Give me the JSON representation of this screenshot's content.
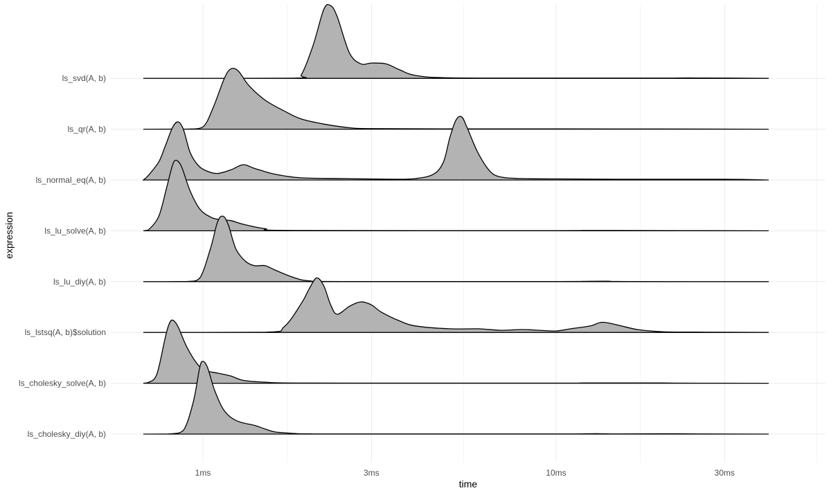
{
  "chart_data": {
    "type": "ridgeline",
    "xlabel": "time",
    "ylabel": "expression",
    "x_scale": "log",
    "x_ticks": [
      {
        "value": 0.001,
        "label": "1ms"
      },
      {
        "value": 0.003,
        "label": "3ms"
      },
      {
        "value": 0.01,
        "label": "10ms"
      },
      {
        "value": 0.03,
        "label": "30ms"
      }
    ],
    "x_range": [
      0.00073,
      0.046
    ],
    "grid": true,
    "fill_color": "#b3b3b3",
    "line_color": "#000000",
    "series": [
      {
        "name": "ls_cholesky_diy(A, b)",
        "baseline": 0,
        "points": [
          [
            0.00065,
            0
          ],
          [
            0.0008,
            0.002
          ],
          [
            0.00088,
            0.05
          ],
          [
            0.00094,
            0.45
          ],
          [
            0.00098,
            0.92
          ],
          [
            0.001,
            1.0
          ],
          [
            0.00103,
            0.92
          ],
          [
            0.00108,
            0.6
          ],
          [
            0.00115,
            0.32
          ],
          [
            0.00125,
            0.18
          ],
          [
            0.0014,
            0.12
          ],
          [
            0.0015,
            0.07
          ],
          [
            0.0016,
            0.03
          ],
          [
            0.0018,
            0.01
          ],
          [
            0.002,
            0.003
          ],
          [
            0.003,
            0.002
          ],
          [
            0.01,
            0.002
          ],
          [
            0.013,
            0.006
          ],
          [
            0.015,
            0.002
          ],
          [
            0.02,
            0.005
          ],
          [
            0.025,
            0.002
          ],
          [
            0.04,
            0
          ]
        ]
      },
      {
        "name": "ls_cholesky_solve(A, b)",
        "baseline": 1,
        "points": [
          [
            0.00065,
            0
          ],
          [
            0.0007,
            0.01
          ],
          [
            0.00074,
            0.12
          ],
          [
            0.00078,
            0.6
          ],
          [
            0.0008,
            0.8
          ],
          [
            0.00082,
            0.87
          ],
          [
            0.00085,
            0.78
          ],
          [
            0.0009,
            0.5
          ],
          [
            0.00097,
            0.25
          ],
          [
            0.00103,
            0.17
          ],
          [
            0.0011,
            0.14
          ],
          [
            0.0012,
            0.1
          ],
          [
            0.0013,
            0.04
          ],
          [
            0.0015,
            0.015
          ],
          [
            0.002,
            0.003
          ],
          [
            0.01,
            0.002
          ],
          [
            0.012,
            0.004
          ],
          [
            0.02,
            0.004
          ],
          [
            0.022,
            0.002
          ],
          [
            0.04,
            0
          ]
        ]
      },
      {
        "name": "ls_lstsq(A, b)$solution",
        "baseline": 2,
        "points": [
          [
            0.00065,
            0
          ],
          [
            0.0015,
            0.003
          ],
          [
            0.0017,
            0.08
          ],
          [
            0.0019,
            0.4
          ],
          [
            0.002,
            0.6
          ],
          [
            0.0021,
            0.75
          ],
          [
            0.0022,
            0.64
          ],
          [
            0.0023,
            0.38
          ],
          [
            0.0024,
            0.25
          ],
          [
            0.0026,
            0.36
          ],
          [
            0.0028,
            0.42
          ],
          [
            0.003,
            0.38
          ],
          [
            0.0032,
            0.28
          ],
          [
            0.0036,
            0.16
          ],
          [
            0.004,
            0.09
          ],
          [
            0.005,
            0.05
          ],
          [
            0.006,
            0.05
          ],
          [
            0.007,
            0.03
          ],
          [
            0.008,
            0.04
          ],
          [
            0.009,
            0.03
          ],
          [
            0.01,
            0.02
          ],
          [
            0.011,
            0.05
          ],
          [
            0.0125,
            0.09
          ],
          [
            0.0135,
            0.14
          ],
          [
            0.015,
            0.1
          ],
          [
            0.017,
            0.04
          ],
          [
            0.02,
            0.01
          ],
          [
            0.025,
            0.005
          ],
          [
            0.04,
            0
          ]
        ]
      },
      {
        "name": "ls_lu_diy(A, b)",
        "baseline": 3,
        "points": [
          [
            0.00065,
            0
          ],
          [
            0.0009,
            0.002
          ],
          [
            0.00098,
            0.05
          ],
          [
            0.00105,
            0.45
          ],
          [
            0.0011,
            0.82
          ],
          [
            0.00114,
            0.9
          ],
          [
            0.00118,
            0.78
          ],
          [
            0.00124,
            0.45
          ],
          [
            0.00132,
            0.28
          ],
          [
            0.0014,
            0.22
          ],
          [
            0.0015,
            0.22
          ],
          [
            0.0016,
            0.16
          ],
          [
            0.0018,
            0.06
          ],
          [
            0.002,
            0.01
          ],
          [
            0.0025,
            0.002
          ],
          [
            0.01,
            0.002
          ],
          [
            0.012,
            0.004
          ],
          [
            0.014,
            0.006
          ],
          [
            0.016,
            0.002
          ],
          [
            0.04,
            0
          ]
        ]
      },
      {
        "name": "ls_lu_solve(A, b)",
        "baseline": 4,
        "points": [
          [
            0.00065,
            0
          ],
          [
            0.0007,
            0.01
          ],
          [
            0.00075,
            0.2
          ],
          [
            0.00079,
            0.6
          ],
          [
            0.00082,
            0.9
          ],
          [
            0.00084,
            0.97
          ],
          [
            0.00087,
            0.88
          ],
          [
            0.00092,
            0.55
          ],
          [
            0.00098,
            0.3
          ],
          [
            0.00105,
            0.19
          ],
          [
            0.0011,
            0.16
          ],
          [
            0.0012,
            0.14
          ],
          [
            0.0013,
            0.09
          ],
          [
            0.0015,
            0.03
          ],
          [
            0.0018,
            0.005
          ],
          [
            0.01,
            0.003
          ],
          [
            0.013,
            0.005
          ],
          [
            0.04,
            0
          ]
        ]
      },
      {
        "name": "ls_normal_eq(A, b)",
        "baseline": 5,
        "points": [
          [
            0.00065,
            0
          ],
          [
            0.0007,
            0.06
          ],
          [
            0.00075,
            0.25
          ],
          [
            0.00078,
            0.45
          ],
          [
            0.00082,
            0.72
          ],
          [
            0.00085,
            0.8
          ],
          [
            0.00088,
            0.7
          ],
          [
            0.00092,
            0.38
          ],
          [
            0.00097,
            0.2
          ],
          [
            0.00103,
            0.12
          ],
          [
            0.0011,
            0.09
          ],
          [
            0.0012,
            0.14
          ],
          [
            0.0013,
            0.21
          ],
          [
            0.0014,
            0.16
          ],
          [
            0.0016,
            0.08
          ],
          [
            0.0019,
            0.03
          ],
          [
            0.0025,
            0.02
          ],
          [
            0.0035,
            0.01
          ],
          [
            0.004,
            0.02
          ],
          [
            0.0045,
            0.08
          ],
          [
            0.0048,
            0.25
          ],
          [
            0.005,
            0.58
          ],
          [
            0.0052,
            0.82
          ],
          [
            0.0054,
            0.87
          ],
          [
            0.0056,
            0.72
          ],
          [
            0.006,
            0.38
          ],
          [
            0.0065,
            0.12
          ],
          [
            0.007,
            0.04
          ],
          [
            0.008,
            0.02
          ],
          [
            0.01,
            0.015
          ],
          [
            0.015,
            0.01
          ],
          [
            0.03,
            0.01
          ],
          [
            0.04,
            0
          ]
        ]
      },
      {
        "name": "ls_qr(A, b)",
        "baseline": 6,
        "points": [
          [
            0.00065,
            0
          ],
          [
            0.0009,
            0.001
          ],
          [
            0.001,
            0.03
          ],
          [
            0.00107,
            0.3
          ],
          [
            0.00115,
            0.7
          ],
          [
            0.0012,
            0.83
          ],
          [
            0.00126,
            0.8
          ],
          [
            0.00135,
            0.6
          ],
          [
            0.0015,
            0.4
          ],
          [
            0.0017,
            0.25
          ],
          [
            0.0019,
            0.14
          ],
          [
            0.0022,
            0.07
          ],
          [
            0.0026,
            0.02
          ],
          [
            0.003,
            0.008
          ],
          [
            0.005,
            0.004
          ],
          [
            0.01,
            0.004
          ],
          [
            0.04,
            0
          ]
        ]
      },
      {
        "name": "ls_svd(A, b)",
        "baseline": 7,
        "points": [
          [
            0.00065,
            0
          ],
          [
            0.0018,
            0.003
          ],
          [
            0.0019,
            0.05
          ],
          [
            0.00205,
            0.45
          ],
          [
            0.0022,
            0.95
          ],
          [
            0.0023,
            1.0
          ],
          [
            0.0024,
            0.85
          ],
          [
            0.0026,
            0.35
          ],
          [
            0.0028,
            0.2
          ],
          [
            0.003,
            0.21
          ],
          [
            0.0033,
            0.2
          ],
          [
            0.0036,
            0.12
          ],
          [
            0.004,
            0.04
          ],
          [
            0.005,
            0.008
          ],
          [
            0.01,
            0.004
          ],
          [
            0.02,
            0.004
          ],
          [
            0.025,
            0.006
          ],
          [
            0.04,
            0
          ]
        ]
      }
    ]
  }
}
